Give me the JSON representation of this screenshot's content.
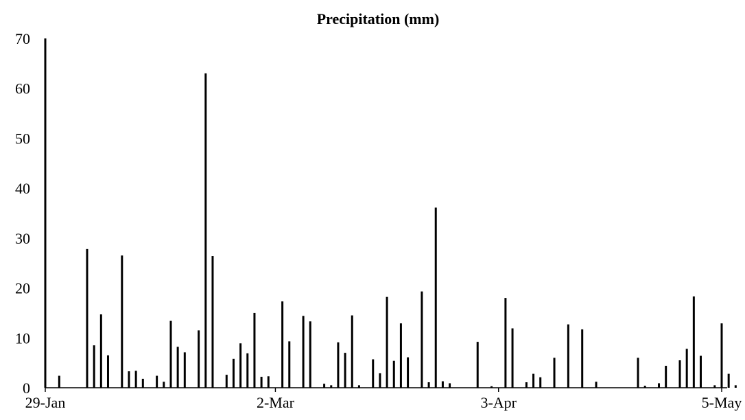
{
  "chart_data": {
    "type": "bar",
    "title": "Precipitation (mm)",
    "xlabel": "",
    "ylabel": "",
    "x_start": "29-Jan",
    "ylim": [
      0,
      70
    ],
    "yticks": [
      0,
      10,
      20,
      30,
      40,
      50,
      60,
      70
    ],
    "xtick_labels": [
      "29-Jan",
      "2-Mar",
      "3-Apr",
      "5-May"
    ],
    "grid": false,
    "legend": "none",
    "bar_color": "#000000",
    "series": [
      {
        "x": [
          "29-Jan",
          "31-Jan",
          "4-Feb",
          "5-Feb",
          "6-Feb",
          "7-Feb",
          "9-Feb",
          "10-Feb",
          "11-Feb",
          "12-Feb",
          "14-Feb",
          "15-Feb",
          "16-Feb",
          "17-Feb",
          "18-Feb",
          "20-Feb",
          "21-Feb",
          "22-Feb",
          "24-Feb",
          "25-Feb",
          "26-Feb",
          "27-Feb",
          "28-Feb",
          "29-Feb",
          "1-Mar",
          "3-Mar",
          "4-Mar",
          "6-Mar",
          "7-Mar",
          "9-Mar",
          "10-Mar",
          "11-Mar",
          "12-Mar",
          "13-Mar",
          "14-Mar",
          "16-Mar",
          "17-Mar",
          "18-Mar",
          "19-Mar",
          "20-Mar",
          "21-Mar",
          "23-Mar",
          "24-Mar",
          "25-Mar",
          "26-Mar",
          "27-Mar",
          "31-Mar",
          "2-Apr",
          "4-Apr",
          "5-Apr",
          "7-Apr",
          "8-Apr",
          "9-Apr",
          "11-Apr",
          "13-Apr",
          "15-Apr",
          "17-Apr",
          "23-Apr",
          "24-Apr",
          "26-Apr",
          "27-Apr",
          "29-Apr",
          "30-Apr",
          "1-May",
          "2-May",
          "4-May",
          "5-May",
          "6-May",
          "7-May"
        ],
        "values": [
          70,
          2.4,
          27.8,
          8.5,
          14.7,
          6.5,
          26.5,
          3.3,
          3.4,
          1.8,
          2.4,
          1.2,
          13.4,
          8.2,
          7.1,
          11.5,
          63,
          26.4,
          2.6,
          5.8,
          8.9,
          6.9,
          15,
          2.2,
          2.3,
          17.3,
          9.3,
          14.4,
          13.3,
          0.8,
          0.5,
          9.1,
          7,
          14.5,
          0.5,
          5.7,
          2.9,
          18.2,
          5.4,
          12.9,
          6.1,
          19.3,
          1.1,
          36.1,
          1.3,
          0.9,
          9.2,
          0.3,
          18,
          11.9,
          1.1,
          2.8,
          2.1,
          6,
          12.7,
          11.7,
          1.2,
          6,
          0.4,
          0.9,
          4.4,
          5.5,
          7.8,
          18.3,
          6.4,
          0.5,
          12.9,
          2.8,
          0.5
        ]
      }
    ]
  }
}
